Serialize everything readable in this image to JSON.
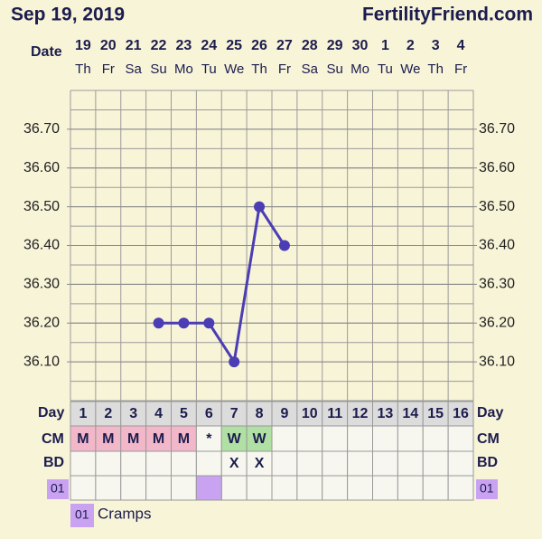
{
  "header": {
    "date": "Sep 19, 2019",
    "site": "FertilityFriend.com"
  },
  "chart_data": {
    "type": "line",
    "x_label": "Date",
    "dates": [
      19,
      20,
      21,
      22,
      23,
      24,
      25,
      26,
      27,
      28,
      29,
      30,
      1,
      2,
      3,
      4
    ],
    "weekdays": [
      "Th",
      "Fr",
      "Sa",
      "Su",
      "Mo",
      "Tu",
      "We",
      "Th",
      "Fr",
      "Sa",
      "Su",
      "Mo",
      "Tu",
      "We",
      "Th",
      "Fr"
    ],
    "day_label": "Day",
    "cycle_days": [
      1,
      2,
      3,
      4,
      5,
      6,
      7,
      8,
      9,
      10,
      11,
      12,
      13,
      14,
      15,
      16
    ],
    "values": [
      null,
      null,
      null,
      36.2,
      36.2,
      36.2,
      36.1,
      36.5,
      36.4,
      null,
      null,
      null,
      null,
      null,
      null,
      null
    ],
    "color": "#4b3db3",
    "ylim": [
      36.0,
      36.8
    ],
    "yticks": [
      {
        "value": 36.1,
        "label": "36.10"
      },
      {
        "value": 36.2,
        "label": "36.20"
      },
      {
        "value": 36.3,
        "label": "36.30"
      },
      {
        "value": 36.4,
        "label": "36.40"
      },
      {
        "value": 36.5,
        "label": "36.50"
      },
      {
        "value": 36.6,
        "label": "36.60"
      },
      {
        "value": 36.7,
        "label": "36.70"
      }
    ],
    "grid": true,
    "cm": {
      "label": "CM",
      "entries": [
        "M",
        "M",
        "M",
        "M",
        "M",
        "*",
        "W",
        "W",
        null,
        null,
        null,
        null,
        null,
        null,
        null,
        null
      ],
      "colors": {
        "M": "#f2b8c9",
        "W": "#b1e0a4"
      }
    },
    "bd": {
      "label": "BD",
      "entries": [
        null,
        null,
        null,
        null,
        null,
        null,
        "X",
        "X",
        null,
        null,
        null,
        null,
        null,
        null,
        null,
        null
      ]
    },
    "symptoms": {
      "code": "01",
      "name": "Cramps",
      "color": "#c9a3f2",
      "days": [
        6
      ]
    }
  }
}
